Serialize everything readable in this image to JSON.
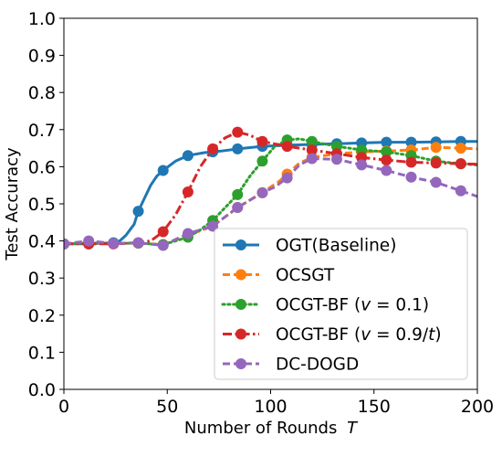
{
  "chart_data": {
    "type": "line",
    "title": "",
    "xlabel": "Number of Rounds",
    "xlabel_symbol": "T",
    "ylabel": "Test Accuracy",
    "xlim": [
      0,
      200
    ],
    "ylim": [
      0.0,
      1.0
    ],
    "x_ticks": [
      "0",
      "50",
      "100",
      "150",
      "200"
    ],
    "y_ticks": [
      "0.0",
      "0.1",
      "0.2",
      "0.3",
      "0.4",
      "0.5",
      "0.6",
      "0.7",
      "0.8",
      "0.9",
      "1.0"
    ],
    "grid": false,
    "legend_position": "lower-right",
    "series": [
      {
        "name": "OGT(Baseline)",
        "legend_rich": [
          {
            "t": "OGT(Baseline)"
          }
        ],
        "color": "#1f77b4",
        "dash": "solid",
        "x": [
          0,
          12,
          24,
          27,
          30,
          34,
          36,
          39,
          42,
          45,
          48,
          54,
          60,
          68,
          76,
          84,
          96,
          108,
          120,
          132,
          144,
          156,
          168,
          180,
          192,
          200
        ],
        "y": [
          0.392,
          0.392,
          0.395,
          0.4,
          0.415,
          0.445,
          0.48,
          0.515,
          0.55,
          0.575,
          0.59,
          0.615,
          0.63,
          0.638,
          0.642,
          0.648,
          0.655,
          0.658,
          0.66,
          0.662,
          0.664,
          0.666,
          0.666,
          0.667,
          0.668,
          0.668
        ],
        "marker_x": [
          0,
          12,
          24,
          36,
          48,
          60,
          72,
          84,
          96,
          108,
          120,
          132,
          144,
          156,
          168,
          180,
          192
        ]
      },
      {
        "name": "OCSGT",
        "legend_rich": [
          {
            "t": "OCSGT"
          }
        ],
        "color": "#ff7f0e",
        "dash": "dashed",
        "x": [
          0,
          12,
          24,
          36,
          48,
          60,
          72,
          84,
          96,
          104,
          108,
          114,
          120,
          132,
          144,
          156,
          168,
          180,
          192,
          200
        ],
        "y": [
          0.392,
          0.395,
          0.393,
          0.394,
          0.39,
          0.415,
          0.44,
          0.49,
          0.53,
          0.56,
          0.58,
          0.61,
          0.625,
          0.635,
          0.64,
          0.642,
          0.645,
          0.652,
          0.65,
          0.648
        ],
        "marker_x": [
          0,
          12,
          24,
          36,
          48,
          60,
          72,
          84,
          96,
          108,
          120,
          132,
          144,
          156,
          168,
          180,
          192
        ]
      },
      {
        "name": "OCGT-BF (v=0.1)",
        "legend_rich": [
          {
            "t": "OCGT-BF ("
          },
          {
            "t": "v",
            "i": true
          },
          {
            "t": " = 0.1)"
          }
        ],
        "color": "#2ca02c",
        "dash": "dotted",
        "x": [
          0,
          12,
          24,
          36,
          48,
          60,
          66,
          72,
          78,
          84,
          90,
          96,
          102,
          108,
          114,
          120,
          132,
          144,
          156,
          168,
          180,
          192,
          200
        ],
        "y": [
          0.392,
          0.395,
          0.393,
          0.394,
          0.39,
          0.41,
          0.43,
          0.455,
          0.49,
          0.525,
          0.575,
          0.615,
          0.655,
          0.672,
          0.675,
          0.668,
          0.655,
          0.645,
          0.64,
          0.63,
          0.615,
          0.608,
          0.605
        ],
        "marker_x": [
          0,
          12,
          24,
          36,
          48,
          60,
          72,
          84,
          96,
          108,
          120,
          132,
          144,
          156,
          168,
          180,
          192
        ]
      },
      {
        "name": "OCGT-BF (v=0.9/t)",
        "legend_rich": [
          {
            "t": "OCGT-BF ("
          },
          {
            "t": "v",
            "i": true
          },
          {
            "t": " = 0.9/"
          },
          {
            "t": "t",
            "i": true
          },
          {
            "t": ")"
          }
        ],
        "color": "#d62728",
        "dash": "dashdot",
        "x": [
          0,
          12,
          24,
          36,
          42,
          48,
          54,
          60,
          66,
          72,
          78,
          84,
          90,
          96,
          108,
          120,
          132,
          144,
          156,
          168,
          180,
          192,
          200
        ],
        "y": [
          0.392,
          0.392,
          0.392,
          0.395,
          0.4,
          0.425,
          0.47,
          0.532,
          0.6,
          0.648,
          0.678,
          0.693,
          0.685,
          0.668,
          0.655,
          0.645,
          0.635,
          0.625,
          0.618,
          0.612,
          0.61,
          0.608,
          0.607
        ],
        "marker_x": [
          0,
          12,
          24,
          36,
          48,
          60,
          72,
          84,
          96,
          108,
          120,
          132,
          144,
          156,
          168,
          180,
          192
        ]
      },
      {
        "name": "DC-DOGD",
        "legend_rich": [
          {
            "t": "DC-DOGD"
          }
        ],
        "color": "#9467bd",
        "dash": "dashed",
        "x": [
          0,
          12,
          24,
          36,
          48,
          60,
          72,
          84,
          96,
          102,
          108,
          114,
          120,
          132,
          144,
          156,
          168,
          180,
          192,
          200
        ],
        "y": [
          0.392,
          0.4,
          0.393,
          0.395,
          0.388,
          0.42,
          0.44,
          0.49,
          0.53,
          0.545,
          0.57,
          0.605,
          0.622,
          0.62,
          0.605,
          0.59,
          0.572,
          0.558,
          0.535,
          0.52
        ],
        "marker_x": [
          0,
          12,
          24,
          36,
          48,
          60,
          72,
          84,
          96,
          108,
          120,
          132,
          144,
          156,
          168,
          180,
          192
        ]
      }
    ]
  }
}
